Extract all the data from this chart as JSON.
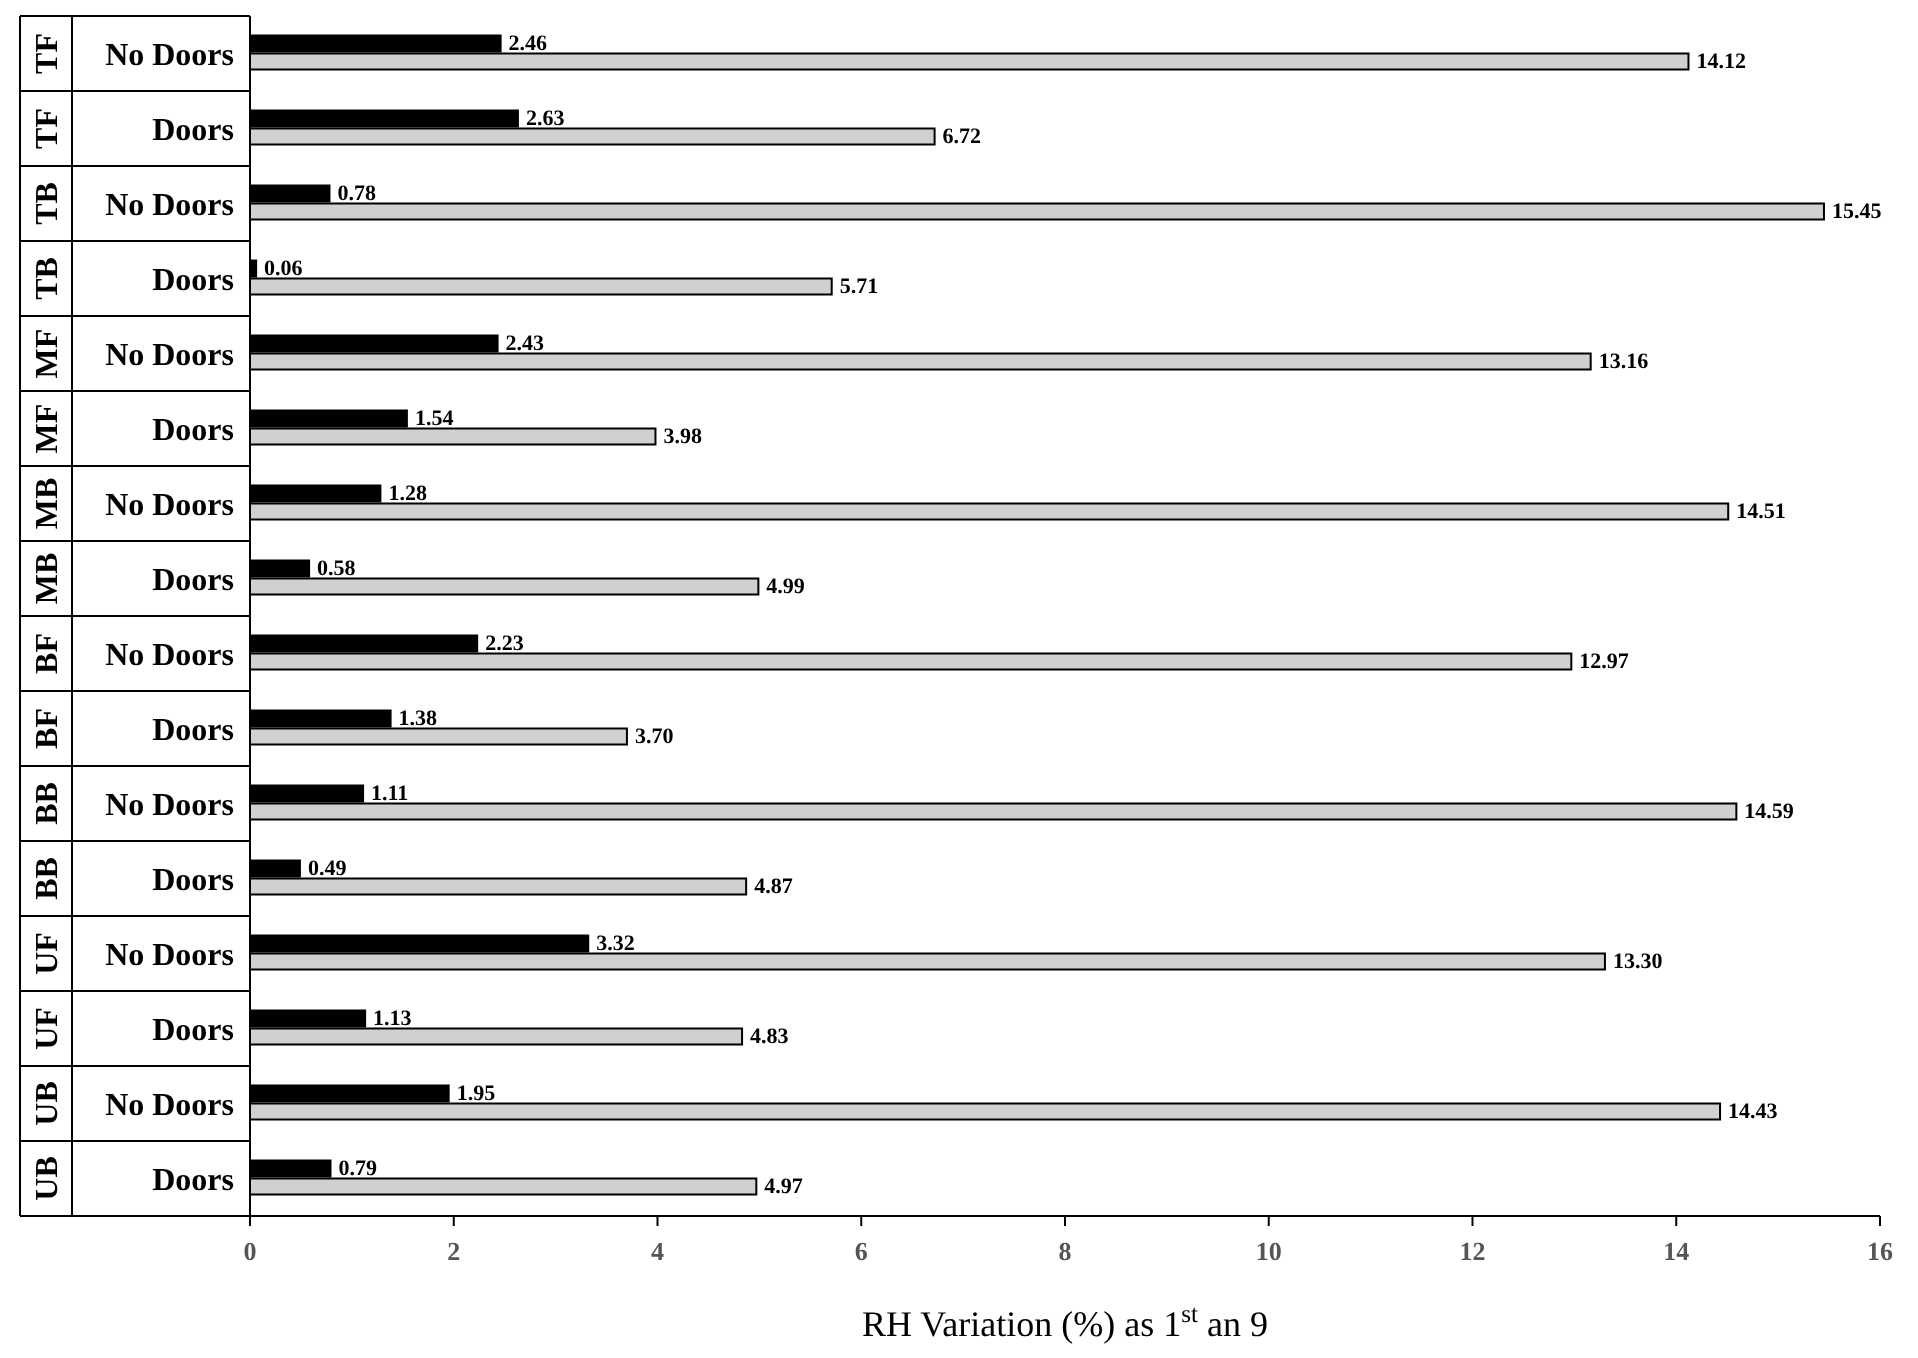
{
  "chart_data": {
    "type": "bar",
    "orientation": "horizontal",
    "xlabel": "RH Variation (%) as 1$^{st}$ an 9",
    "categories": [
      "TF No Doors",
      "TF Doors",
      "TB No Doors",
      "TB Doors",
      "MF No Doors",
      "MF Doors",
      "MB No Doors",
      "MB Doors",
      "BF No Doors",
      "BF Doors",
      "BB No Doors",
      "BB Doors",
      "UF No Doors",
      "UF Doors",
      "UB No Doors",
      "UB Doors"
    ],
    "series": [
      {
        "color": "#000000",
        "values": [
          2.46,
          2.63,
          0.78,
          0.06,
          2.43,
          1.54,
          1.28,
          0.58,
          2.23,
          1.38,
          1.11,
          0.49,
          3.32,
          1.13,
          1.95,
          0.79
        ],
        "value_labels": [
          "2.46",
          "2.63",
          "0.78",
          "0.06",
          "2.43",
          "1.54",
          "1.28",
          "0.58",
          "2.23",
          "1.38",
          "1.11",
          "0.49",
          "3.32",
          "1.13",
          "1.95",
          "0.79"
        ]
      },
      {
        "color": "#d0d0d0",
        "values": [
          14.12,
          6.72,
          15.45,
          5.71,
          13.16,
          3.98,
          14.51,
          4.99,
          12.97,
          3.7,
          14.59,
          4.87,
          13.3,
          4.83,
          14.43,
          4.97
        ],
        "value_labels": [
          "14.12",
          "6.72",
          "15.45",
          "5.71",
          "13.16",
          "3.98",
          "14.51",
          "4.99",
          "12.97",
          "3.70",
          "14.59",
          "4.87",
          "13.30",
          "4.83",
          "14.43",
          "4.97"
        ]
      }
    ],
    "xlim": [
      0,
      16
    ],
    "xticks": [
      0,
      2,
      4,
      6,
      8,
      10,
      12,
      14,
      16
    ],
    "grid": false
  }
}
